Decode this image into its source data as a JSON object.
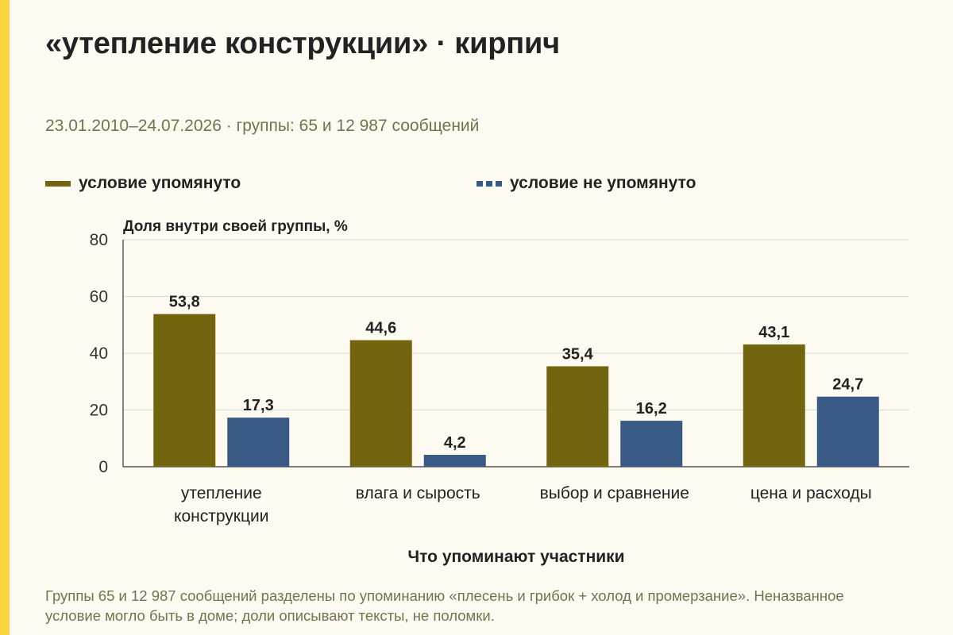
{
  "title": "«утепление конструкции» · кирпич",
  "subtitle": "23.01.2010–24.07.2026 · группы: 65 и 12 987 сообщений",
  "legend": [
    {
      "label": "условие упомянуто",
      "style": "solid",
      "color": "#736510"
    },
    {
      "label": "условие не упомянуто",
      "style": "dashed",
      "color": "#3a5a86"
    }
  ],
  "footnote": "Группы 65 и 12 987 сообщений разделены по упоминанию «плесень и грибок + холод и промерзание». Неназванное условие могло быть в доме; доли описывают тексты, не поломки.",
  "chart_data": {
    "type": "bar",
    "ylabel": "Доля внутри своей группы, %",
    "xlabel": "Что упоминают участники",
    "ylim": [
      0,
      80
    ],
    "yticks": [
      0,
      20,
      40,
      60,
      80
    ],
    "grid": true,
    "categories": [
      "утепление конструкции",
      "влага и сырость",
      "выбор и сравнение",
      "цена и расходы"
    ],
    "series": [
      {
        "name": "условие упомянуто",
        "color": "#736510",
        "values": [
          53.8,
          44.6,
          35.4,
          43.1
        ],
        "labels": [
          "53,8",
          "44,6",
          "35,4",
          "43,1"
        ]
      },
      {
        "name": "условие не упомянуто",
        "color": "#3a5a86",
        "values": [
          17.3,
          4.2,
          16.2,
          24.7
        ],
        "labels": [
          "17,3",
          "4,2",
          "16,2",
          "24,7"
        ]
      }
    ]
  }
}
